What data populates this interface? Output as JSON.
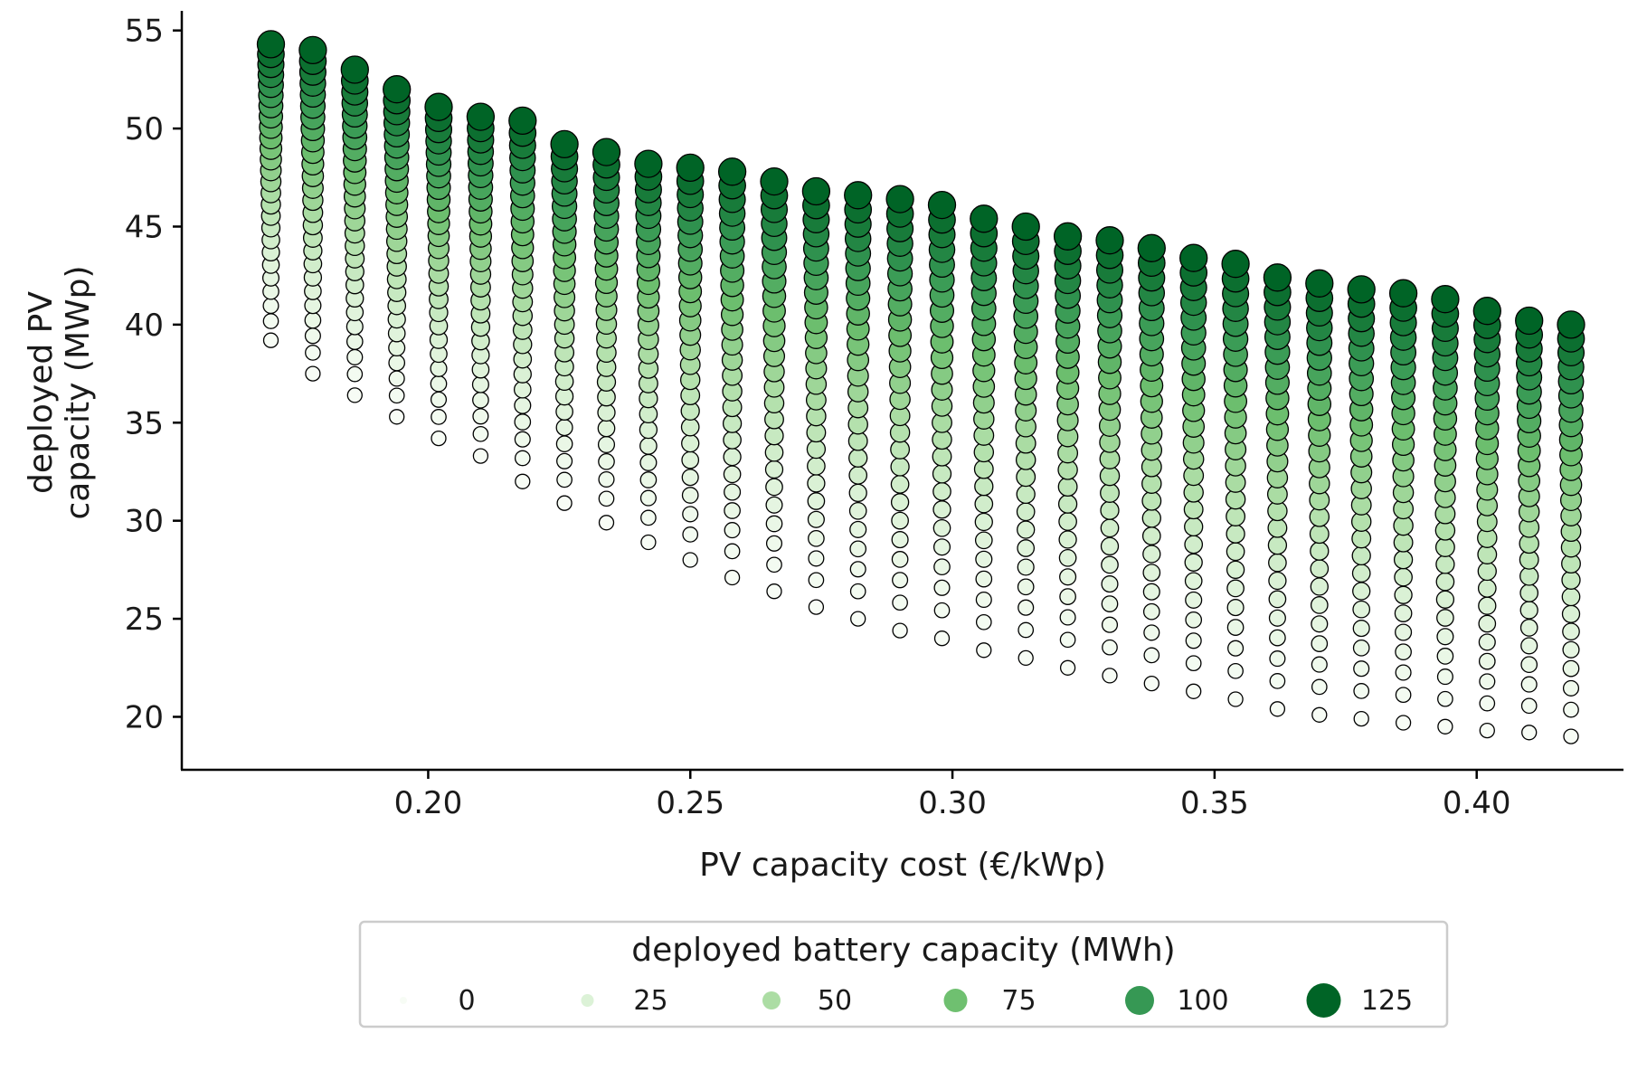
{
  "chart_data": {
    "type": "scatter",
    "title": "",
    "xlabel": "PV capacity cost (€/kWp)",
    "ylabel_lines": [
      "deployed PV",
      "capacity (MWp)"
    ],
    "xlim": [
      0.153,
      0.428
    ],
    "ylim": [
      17.3,
      56.0
    ],
    "x_ticks": [
      "0.20",
      "0.25",
      "0.30",
      "0.35",
      "0.40"
    ],
    "y_ticks": [
      "20",
      "25",
      "30",
      "35",
      "40",
      "45",
      "50",
      "55"
    ],
    "grid": false,
    "color_scale": "Greens",
    "marker_edge_color": "#000000",
    "legend": {
      "title": "deployed battery capacity (MWh)",
      "placement": "bottom-center",
      "entries": [
        "0",
        "25",
        "50",
        "75",
        "100",
        "125"
      ],
      "values": [
        0,
        25,
        50,
        75,
        100,
        125
      ]
    },
    "x": [
      0.17,
      0.178,
      0.186,
      0.194,
      0.202,
      0.21,
      0.218,
      0.226,
      0.234,
      0.242,
      0.25,
      0.258,
      0.266,
      0.274,
      0.282,
      0.29,
      0.298,
      0.306,
      0.314,
      0.322,
      0.33,
      0.338,
      0.346,
      0.354,
      0.362,
      0.37,
      0.378,
      0.386,
      0.394,
      0.402,
      0.41,
      0.418
    ],
    "pv_min": [
      39.2,
      37.5,
      36.4,
      35.3,
      34.2,
      33.3,
      32.0,
      30.9,
      29.9,
      28.9,
      28.0,
      27.1,
      26.4,
      25.6,
      25.0,
      24.4,
      24.0,
      23.4,
      23.0,
      22.5,
      22.1,
      21.7,
      21.3,
      20.9,
      20.4,
      20.1,
      19.9,
      19.7,
      19.5,
      19.3,
      19.2,
      19.0
    ],
    "pv_max": [
      54.3,
      54.0,
      53.0,
      52.0,
      51.1,
      50.6,
      50.4,
      49.2,
      48.8,
      48.2,
      48.0,
      47.8,
      47.3,
      46.8,
      46.6,
      46.4,
      46.1,
      45.4,
      45.0,
      44.5,
      44.3,
      43.9,
      43.4,
      43.1,
      42.4,
      42.1,
      41.8,
      41.6,
      41.3,
      40.7,
      40.2,
      40.0
    ],
    "battery_max": [
      125,
      125,
      125,
      125,
      125,
      125,
      125,
      125,
      125,
      125,
      125,
      125,
      125,
      125,
      125,
      125,
      125,
      125,
      125,
      125,
      125,
      125,
      125,
      125,
      125,
      125,
      125,
      125,
      125,
      125,
      125,
      125
    ],
    "points_per_x": 26
  }
}
